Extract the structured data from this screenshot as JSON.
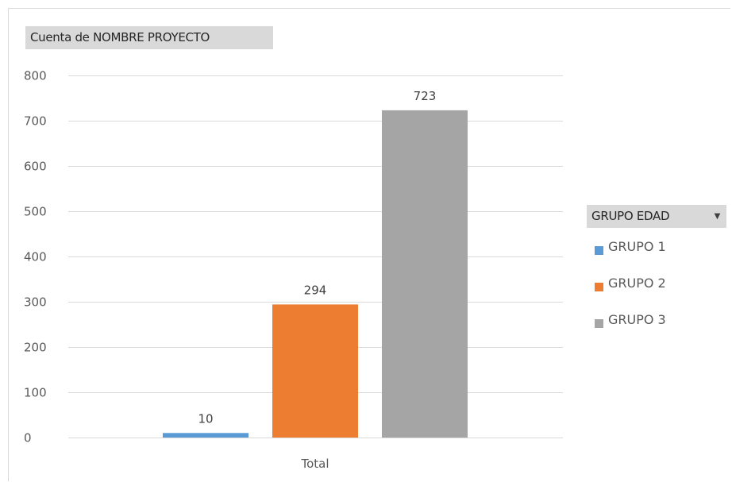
{
  "chart_data": {
    "type": "bar",
    "title": "Cuenta de NOMBRE PROYECTO",
    "categories": [
      "Total"
    ],
    "series": [
      {
        "name": "GRUPO 1",
        "values": [
          10
        ],
        "color": "#5b9bd5"
      },
      {
        "name": "GRUPO 2",
        "values": [
          294
        ],
        "color": "#ed7d31"
      },
      {
        "name": "GRUPO 3",
        "values": [
          723
        ],
        "color": "#a5a5a5"
      }
    ],
    "ylim": [
      0,
      800
    ],
    "yticks": [
      "0",
      "100",
      "200",
      "300",
      "400",
      "500",
      "600",
      "700",
      "800"
    ],
    "grid": true,
    "legend_title": "GRUPO EDAD",
    "legend_arrow": "▼",
    "legend_position": "right"
  }
}
